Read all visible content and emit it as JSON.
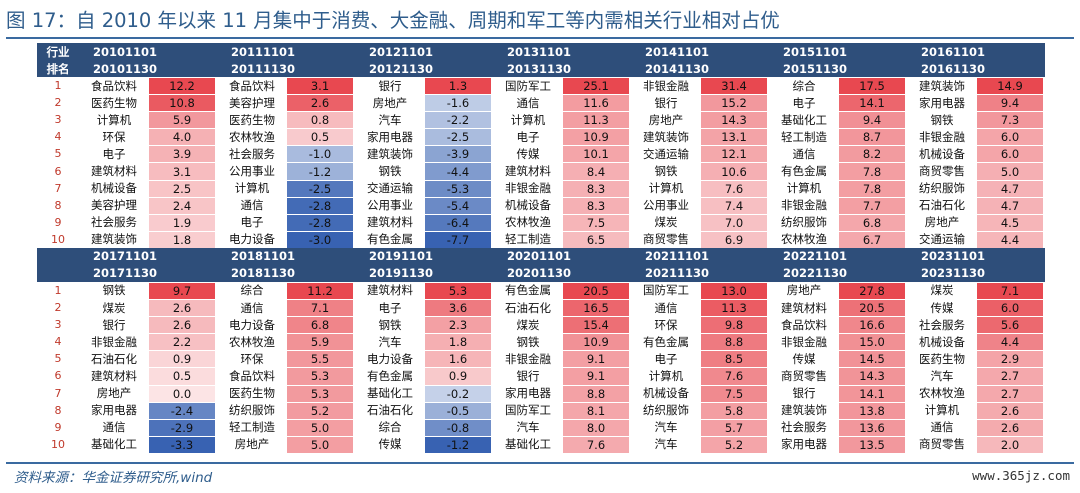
{
  "title": "图 17：自 2010 年以来 11 月集中于消费、大金融、周期和军工等内需相关行业相对占优",
  "source": "资料来源：华金证券研究所,wind",
  "watermark": "www.365jz.com",
  "colors": {
    "header_bg": "#2e4e7a",
    "pos_max": [
      232,
      72,
      80
    ],
    "neg_max": [
      56,
      98,
      178
    ]
  },
  "table": {
    "corner_top": "行业",
    "corner_bottom": "排名",
    "ranks": [
      "1",
      "2",
      "3",
      "4",
      "5",
      "6",
      "7",
      "8",
      "9",
      "10"
    ],
    "blocks": [
      {
        "periods": [
          {
            "start": "20101101",
            "end": "20101130",
            "rows": [
              [
                "食品饮料",
                "12.2"
              ],
              [
                "医药生物",
                "10.8"
              ],
              [
                "计算机",
                "5.9"
              ],
              [
                "环保",
                "4.0"
              ],
              [
                "电子",
                "3.9"
              ],
              [
                "建筑材料",
                "3.1"
              ],
              [
                "机械设备",
                "2.5"
              ],
              [
                "美容护理",
                "2.4"
              ],
              [
                "社会服务",
                "1.9"
              ],
              [
                "建筑装饰",
                "1.8"
              ]
            ]
          },
          {
            "start": "20111101",
            "end": "20111130",
            "rows": [
              [
                "食品饮料",
                "3.1"
              ],
              [
                "美容护理",
                "2.6"
              ],
              [
                "医药生物",
                "0.8"
              ],
              [
                "农林牧渔",
                "0.5"
              ],
              [
                "社会服务",
                "-1.0"
              ],
              [
                "公用事业",
                "-1.2"
              ],
              [
                "计算机",
                "-2.5"
              ],
              [
                "通信",
                "-2.8"
              ],
              [
                "电子",
                "-2.8"
              ],
              [
                "电力设备",
                "-3.0"
              ]
            ]
          },
          {
            "start": "20121101",
            "end": "20121130",
            "rows": [
              [
                "银行",
                "1.3"
              ],
              [
                "房地产",
                "-1.6"
              ],
              [
                "汽车",
                "-2.2"
              ],
              [
                "家用电器",
                "-2.5"
              ],
              [
                "建筑装饰",
                "-3.9"
              ],
              [
                "钢铁",
                "-4.4"
              ],
              [
                "交通运输",
                "-5.3"
              ],
              [
                "公用事业",
                "-5.4"
              ],
              [
                "建筑材料",
                "-6.4"
              ],
              [
                "有色金属",
                "-7.7"
              ]
            ]
          },
          {
            "start": "20131101",
            "end": "20131130",
            "rows": [
              [
                "国防军工",
                "25.1"
              ],
              [
                "通信",
                "11.6"
              ],
              [
                "计算机",
                "11.3"
              ],
              [
                "电子",
                "10.9"
              ],
              [
                "传媒",
                "10.1"
              ],
              [
                "建筑材料",
                "8.4"
              ],
              [
                "非银金融",
                "8.3"
              ],
              [
                "机械设备",
                "8.3"
              ],
              [
                "农林牧渔",
                "7.5"
              ],
              [
                "轻工制造",
                "6.5"
              ]
            ]
          },
          {
            "start": "20141101",
            "end": "20141130",
            "rows": [
              [
                "非银金融",
                "31.4"
              ],
              [
                "银行",
                "15.2"
              ],
              [
                "房地产",
                "14.3"
              ],
              [
                "建筑装饰",
                "13.1"
              ],
              [
                "交通运输",
                "12.1"
              ],
              [
                "钢铁",
                "10.6"
              ],
              [
                "计算机",
                "7.6"
              ],
              [
                "公用事业",
                "7.4"
              ],
              [
                "煤炭",
                "7.0"
              ],
              [
                "商贸零售",
                "6.9"
              ]
            ]
          },
          {
            "start": "20151101",
            "end": "20151130",
            "rows": [
              [
                "综合",
                "17.5"
              ],
              [
                "电子",
                "14.1"
              ],
              [
                "基础化工",
                "9.4"
              ],
              [
                "轻工制造",
                "8.7"
              ],
              [
                "通信",
                "8.2"
              ],
              [
                "有色金属",
                "7.8"
              ],
              [
                "计算机",
                "7.8"
              ],
              [
                "非银金融",
                "7.7"
              ],
              [
                "纺织服饰",
                "6.8"
              ],
              [
                "农林牧渔",
                "6.7"
              ]
            ]
          },
          {
            "start": "20161101",
            "end": "20161130",
            "rows": [
              [
                "建筑装饰",
                "14.9"
              ],
              [
                "家用电器",
                "9.4"
              ],
              [
                "钢铁",
                "7.3"
              ],
              [
                "非银金融",
                "6.0"
              ],
              [
                "机械设备",
                "6.0"
              ],
              [
                "商贸零售",
                "5.0"
              ],
              [
                "纺织服饰",
                "4.7"
              ],
              [
                "石油石化",
                "4.7"
              ],
              [
                "房地产",
                "4.5"
              ],
              [
                "交通运输",
                "4.4"
              ]
            ]
          }
        ]
      },
      {
        "periods": [
          {
            "start": "20171101",
            "end": "20171130",
            "rows": [
              [
                "钢铁",
                "9.7"
              ],
              [
                "煤炭",
                "2.6"
              ],
              [
                "银行",
                "2.6"
              ],
              [
                "非银金融",
                "2.2"
              ],
              [
                "石油石化",
                "0.9"
              ],
              [
                "建筑材料",
                "0.5"
              ],
              [
                "房地产",
                "0.0"
              ],
              [
                "家用电器",
                "-2.4"
              ],
              [
                "通信",
                "-2.9"
              ],
              [
                "基础化工",
                "-3.3"
              ]
            ]
          },
          {
            "start": "20181101",
            "end": "20181130",
            "rows": [
              [
                "综合",
                "11.2"
              ],
              [
                "通信",
                "7.1"
              ],
              [
                "电力设备",
                "6.8"
              ],
              [
                "农林牧渔",
                "5.9"
              ],
              [
                "环保",
                "5.5"
              ],
              [
                "食品饮料",
                "5.3"
              ],
              [
                "医药生物",
                "5.3"
              ],
              [
                "纺织服饰",
                "5.2"
              ],
              [
                "轻工制造",
                "5.0"
              ],
              [
                "房地产",
                "5.0"
              ]
            ]
          },
          {
            "start": "20191101",
            "end": "20191130",
            "rows": [
              [
                "建筑材料",
                "5.3"
              ],
              [
                "电子",
                "3.6"
              ],
              [
                "钢铁",
                "2.3"
              ],
              [
                "汽车",
                "1.8"
              ],
              [
                "电力设备",
                "1.6"
              ],
              [
                "有色金属",
                "0.9"
              ],
              [
                "基础化工",
                "-0.2"
              ],
              [
                "石油石化",
                "-0.5"
              ],
              [
                "综合",
                "-0.8"
              ],
              [
                "传媒",
                "-1.2"
              ]
            ]
          },
          {
            "start": "20201101",
            "end": "20201130",
            "rows": [
              [
                "有色金属",
                "20.5"
              ],
              [
                "石油石化",
                "16.5"
              ],
              [
                "煤炭",
                "15.4"
              ],
              [
                "钢铁",
                "10.9"
              ],
              [
                "非银金融",
                "9.1"
              ],
              [
                "银行",
                "9.1"
              ],
              [
                "家用电器",
                "8.8"
              ],
              [
                "国防军工",
                "8.1"
              ],
              [
                "汽车",
                "8.0"
              ],
              [
                "基础化工",
                "7.6"
              ]
            ]
          },
          {
            "start": "20211101",
            "end": "20211130",
            "rows": [
              [
                "国防军工",
                "13.0"
              ],
              [
                "通信",
                "11.3"
              ],
              [
                "环保",
                "9.8"
              ],
              [
                "有色金属",
                "8.8"
              ],
              [
                "电子",
                "8.5"
              ],
              [
                "计算机",
                "7.6"
              ],
              [
                "机械设备",
                "7.5"
              ],
              [
                "纺织服饰",
                "5.8"
              ],
              [
                "汽车",
                "5.7"
              ],
              [
                "汽车",
                "5.2"
              ]
            ]
          },
          {
            "start": "20221101",
            "end": "20221130",
            "rows": [
              [
                "房地产",
                "27.8"
              ],
              [
                "建筑材料",
                "20.5"
              ],
              [
                "食品饮料",
                "16.6"
              ],
              [
                "非银金融",
                "15.0"
              ],
              [
                "传媒",
                "14.5"
              ],
              [
                "商贸零售",
                "14.3"
              ],
              [
                "银行",
                "14.1"
              ],
              [
                "建筑装饰",
                "13.8"
              ],
              [
                "社会服务",
                "13.6"
              ],
              [
                "家用电器",
                "13.5"
              ]
            ]
          },
          {
            "start": "20231101",
            "end": "20231130",
            "rows": [
              [
                "煤炭",
                "7.1"
              ],
              [
                "传媒",
                "6.0"
              ],
              [
                "社会服务",
                "5.6"
              ],
              [
                "机械设备",
                "4.4"
              ],
              [
                "医药生物",
                "2.9"
              ],
              [
                "汽车",
                "2.7"
              ],
              [
                "农林牧渔",
                "2.7"
              ],
              [
                "计算机",
                "2.6"
              ],
              [
                "通信",
                "2.6"
              ],
              [
                "商贸零售",
                "2.0"
              ]
            ]
          }
        ]
      }
    ]
  }
}
